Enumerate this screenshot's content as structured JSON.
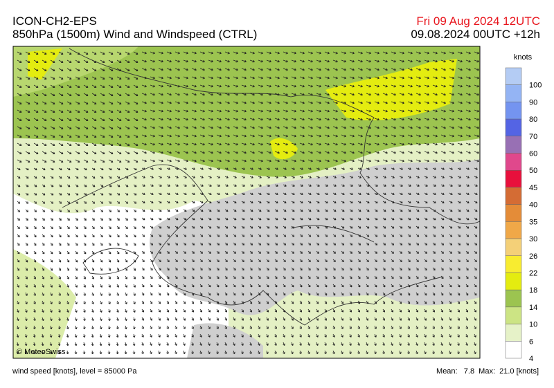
{
  "header": {
    "model": "ICON-CH2-EPS",
    "title": "850hPa (1500m) Wind and Windspeed (CTRL)",
    "valid": "Fri 09 Aug 2024 12UTC",
    "run": "09.08.2024 00UTC +12h"
  },
  "legend": {
    "unit": "knots",
    "labels": [
      "100",
      "90",
      "80",
      "70",
      "60",
      "50",
      "45",
      "40",
      "35",
      "30",
      "26",
      "22",
      "18",
      "14",
      "10",
      "6",
      "4"
    ],
    "colors": [
      "#b4ccf4",
      "#94b4f4",
      "#7494f0",
      "#5464e4",
      "#9870b4",
      "#e0488c",
      "#e8103c",
      "#d46c34",
      "#e48c38",
      "#f0a848",
      "#f4d078",
      "#f8ec30",
      "#e4ec10",
      "#9cc450",
      "#cce484",
      "#e6f2c8",
      "#ffffff"
    ]
  },
  "copyright": "© MeteoSwiss",
  "footer": {
    "left": "wind speed [knots], level = 85000 Pa",
    "stats": "Mean:   7.8  Max:  21.0 [knots]"
  }
}
